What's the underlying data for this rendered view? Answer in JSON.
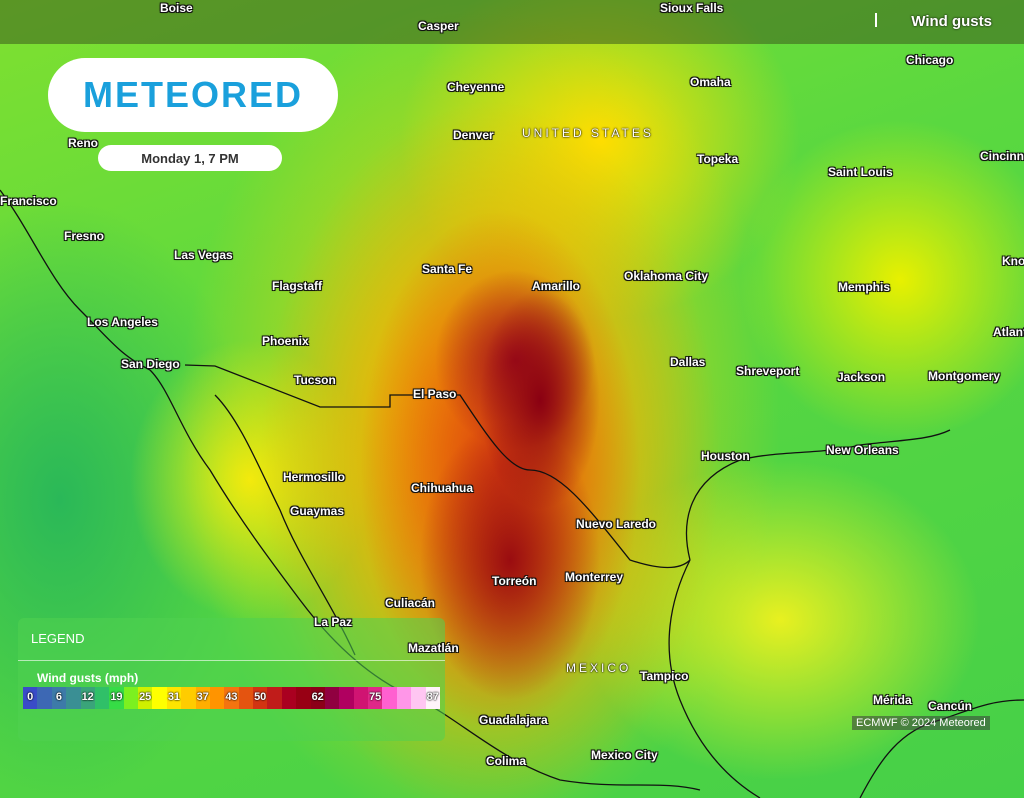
{
  "brand": {
    "logo_text": "METEORED"
  },
  "timestamp": "Monday 1, 7 PM",
  "layer": {
    "label": "Wind gusts",
    "icon": "layers-icon"
  },
  "credit": "ECMWF © 2024 Meteored",
  "countries": [
    "UNITED STATES",
    "MEXICO"
  ],
  "cities": [
    "Casper",
    "Sioux Falls",
    "Cheyenne",
    "Omaha",
    "Chicago",
    "Reno",
    "Denver",
    "Topeka",
    "Saint Louis",
    "Cincinnati",
    "Francisco",
    "Fresno",
    "Las Vegas",
    "Santa Fe",
    "Amarillo",
    "Oklahoma City",
    "Memphis",
    "Knoxville",
    "Flagstaff",
    "Los Angeles",
    "Phoenix",
    "Atlanta",
    "San Diego",
    "Dallas",
    "Shreveport",
    "Jackson",
    "Montgomery",
    "Tucson",
    "El Paso",
    "Houston",
    "New Orleans",
    "Hermosillo",
    "Chihuahua",
    "Guaymas",
    "Nuevo Laredo",
    "Torreón",
    "Monterrey",
    "Culiacán",
    "La Paz",
    "Mazatlán",
    "Tampico",
    "Guadalajara",
    "Mérida",
    "Cancún",
    "Mexico City",
    "Colima",
    "Boise"
  ],
  "legend": {
    "title": "LEGEND",
    "subtitle": "Wind gusts (mph)",
    "scale": [
      {
        "v": "0",
        "c": "#3a4cc8"
      },
      {
        "v": "",
        "c": "#3d68b4"
      },
      {
        "v": "6",
        "c": "#3d7aa8"
      },
      {
        "v": "",
        "c": "#3a8f94"
      },
      {
        "v": "12",
        "c": "#3aa47a"
      },
      {
        "v": "",
        "c": "#30c068"
      },
      {
        "v": "19",
        "c": "#36dc46"
      },
      {
        "v": "",
        "c": "#7cf020"
      },
      {
        "v": "25",
        "c": "#cff000"
      },
      {
        "v": "",
        "c": "#ffff00"
      },
      {
        "v": "31",
        "c": "#ffe400"
      },
      {
        "v": "",
        "c": "#ffcc00"
      },
      {
        "v": "37",
        "c": "#ffae00"
      },
      {
        "v": "",
        "c": "#ff9400"
      },
      {
        "v": "43",
        "c": "#f47410"
      },
      {
        "v": "",
        "c": "#e45410"
      },
      {
        "v": "50",
        "c": "#d23412"
      },
      {
        "v": "",
        "c": "#c01c1a"
      },
      {
        "v": "",
        "c": "#aa0020"
      },
      {
        "v": "",
        "c": "#980014"
      },
      {
        "v": "62",
        "c": "#8c0018"
      },
      {
        "v": "",
        "c": "#900040"
      },
      {
        "v": "",
        "c": "#b00060"
      },
      {
        "v": "",
        "c": "#d01472"
      },
      {
        "v": "75",
        "c": "#e02888"
      },
      {
        "v": "",
        "c": "#ff60d0"
      },
      {
        "v": "",
        "c": "#ff96e8"
      },
      {
        "v": "",
        "c": "#ffc6f2"
      },
      {
        "v": "87",
        "c": "#fff4fa"
      }
    ]
  }
}
